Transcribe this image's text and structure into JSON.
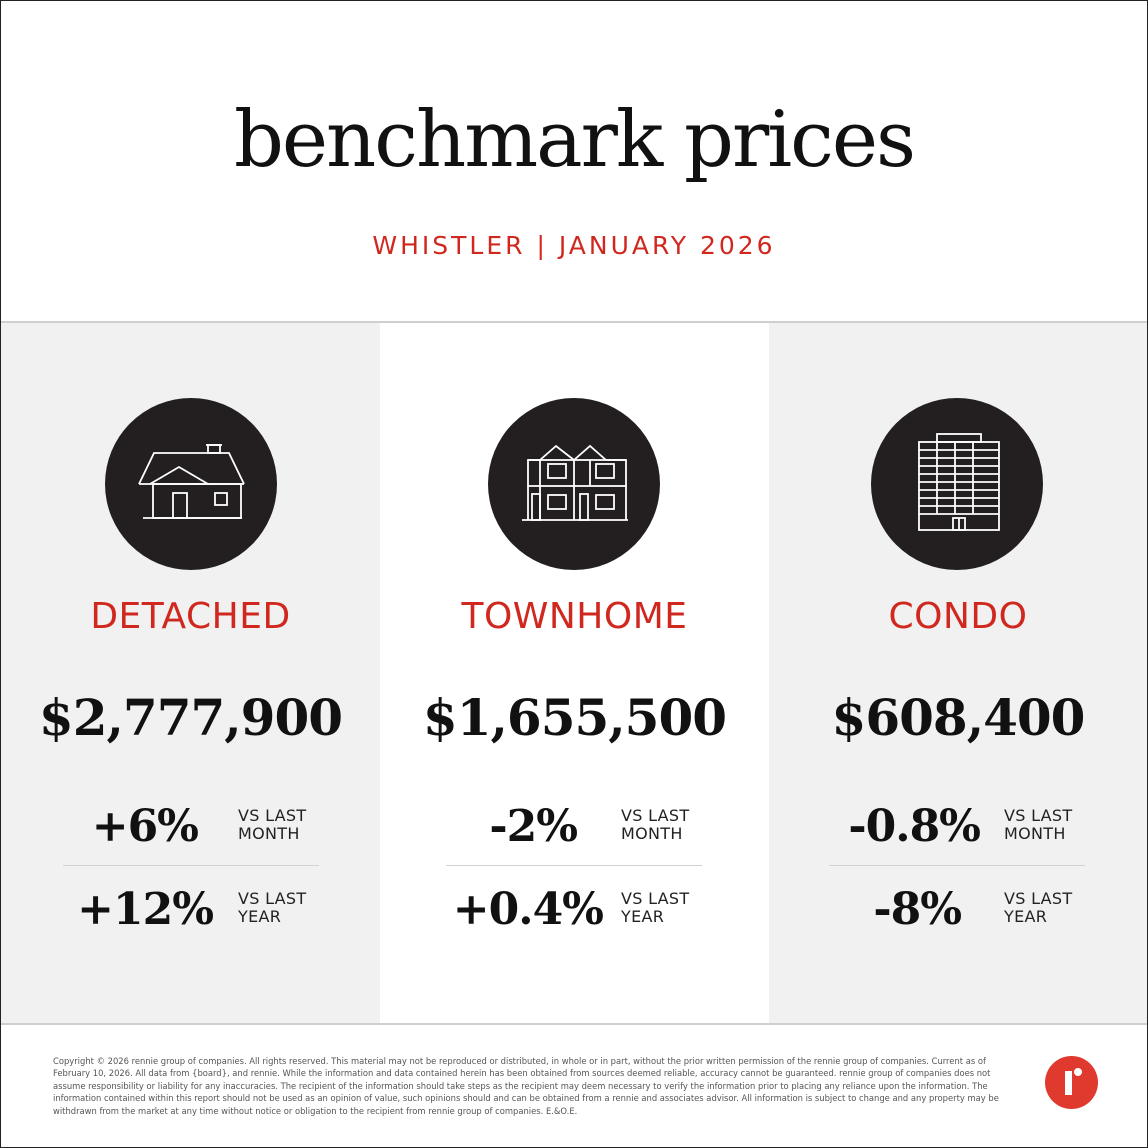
{
  "header": {
    "title": "benchmark prices",
    "subtitle": "WHISTLER | JANUARY 2026"
  },
  "colors": {
    "accent": "#d0281f",
    "icon_circle": "#231f20",
    "panel_gray": "#f1f1f1",
    "logo": "#e03a2f"
  },
  "categories": [
    {
      "icon": "house-icon",
      "label": "DETACHED",
      "price": "$2,777,900",
      "month_change": "+6%",
      "month_label_1": "VS LAST",
      "month_label_2": "MONTH",
      "year_change": "+12%",
      "year_label_1": "VS LAST",
      "year_label_2": "YEAR"
    },
    {
      "icon": "townhome-icon",
      "label": "TOWNHOME",
      "price": "$1,655,500",
      "month_change": "-2%",
      "month_label_1": "VS LAST",
      "month_label_2": "MONTH",
      "year_change": "+0.4%",
      "year_label_1": "VS LAST",
      "year_label_2": "YEAR"
    },
    {
      "icon": "condo-building-icon",
      "label": "CONDO",
      "price": "$608,400",
      "month_change": "-0.8%",
      "month_label_1": "VS LAST",
      "month_label_2": "MONTH",
      "year_change": "-8%",
      "year_label_1": "VS LAST",
      "year_label_2": "YEAR"
    }
  ],
  "footer": {
    "disclaimer": "Copyright © 2026 rennie group of companies. All rights reserved. This material may not be reproduced or distributed, in whole or in part, without the prior written permission of the rennie group of companies. Current as of February 10, 2026. All data from {board}, and rennie. While the information and data contained herein has been obtained from sources deemed reliable, accuracy cannot be guaranteed. rennie group of companies does not assume responsibility or liability for any inaccuracies. The recipient of the information should take steps as the recipient may deem necessary to verify the information prior to placing any reliance upon the information. The information contained within this report should not be used as an opinion of value, such opinions should and can be obtained from a rennie and associates advisor. All information is subject to change and any property may be withdrawn from the market at any time without notice or obligation to the recipient from rennie group of companies. E.&O.E.",
    "logo": "rennie-logo-icon"
  }
}
